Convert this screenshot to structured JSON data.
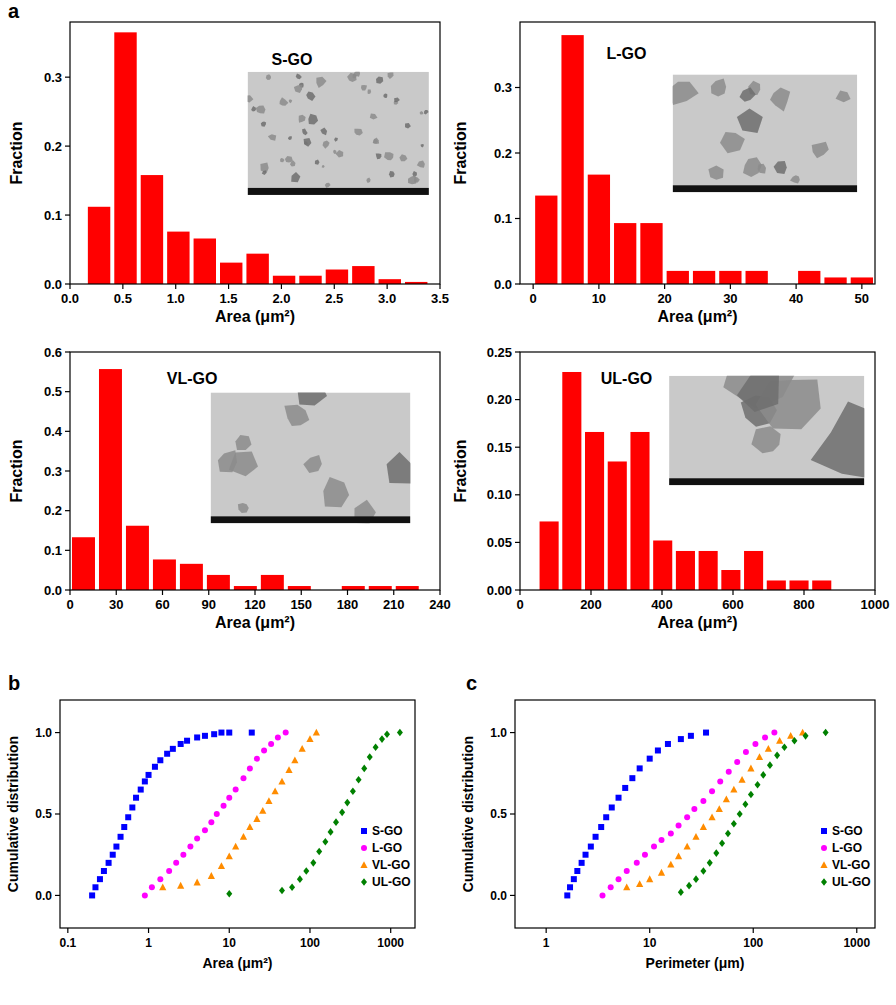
{
  "panel_labels": [
    "a",
    "b",
    "c"
  ],
  "chart_data": [
    {
      "type": "histogram",
      "title": "S-GO",
      "xlabel": "Area (μm²)",
      "ylabel": "Fraction",
      "color": "#ff0000",
      "bins": [
        0.15,
        0.4,
        0.65,
        0.9,
        1.15,
        1.4,
        1.65,
        1.9,
        2.15,
        2.4,
        2.65,
        2.9,
        3.15,
        3.4
      ],
      "values": [
        0.112,
        0.365,
        0.158,
        0.076,
        0.066,
        0.031,
        0.044,
        0.012,
        0.012,
        0.021,
        0.026,
        0.007,
        0.003
      ],
      "xlim": [
        0,
        3.5
      ],
      "ylim": [
        0,
        0.38
      ],
      "xticks": [
        {
          "value": 0,
          "label": "0.0"
        },
        0.5,
        {
          "value": 1,
          "label": "1.0"
        },
        1.5,
        {
          "value": 2,
          "label": "2.0"
        },
        2.5,
        {
          "value": 3,
          "label": "3.0"
        },
        3.5
      ],
      "yticks": [
        {
          "value": 0,
          "label": "0.0"
        },
        0.1,
        0.2,
        0.3
      ]
    },
    {
      "type": "histogram",
      "title": "L-GO",
      "xlabel": "Area (μm²)",
      "ylabel": "Fraction",
      "color": "#ff0000",
      "bins": [
        0,
        4,
        8,
        12,
        16,
        20,
        24,
        28,
        32,
        36,
        40,
        44,
        48,
        52
      ],
      "values": [
        0.135,
        0.38,
        0.167,
        0.093,
        0.093,
        0.02,
        0.02,
        0.02,
        0.02,
        0,
        0.02,
        0.01,
        0.01
      ],
      "xlim": [
        -2,
        52
      ],
      "ylim": [
        0,
        0.4
      ],
      "xticks": [
        0,
        10,
        20,
        30,
        40,
        50
      ],
      "yticks": [
        {
          "value": 0,
          "label": "0.0"
        },
        0.1,
        0.2,
        0.3
      ]
    },
    {
      "type": "histogram",
      "title": "VL-GO",
      "xlabel": "Area (μm²)",
      "ylabel": "Fraction",
      "color": "#ff0000",
      "bins": [
        0,
        17.5,
        35,
        52.5,
        70,
        87.5,
        105,
        122.5,
        140,
        157.5,
        175,
        192.5,
        210,
        227.5
      ],
      "values": [
        0.133,
        0.557,
        0.162,
        0.077,
        0.066,
        0.038,
        0.01,
        0.038,
        0.01,
        0,
        0.01,
        0.01,
        0.01
      ],
      "xlim": [
        0,
        240
      ],
      "ylim": [
        0,
        0.6
      ],
      "xticks": [
        0,
        30,
        60,
        90,
        120,
        150,
        180,
        210,
        240
      ],
      "yticks": [
        {
          "value": 0,
          "label": "0.0"
        },
        0.1,
        0.2,
        0.3,
        0.4,
        0.5,
        0.6
      ]
    },
    {
      "type": "histogram",
      "title": "UL-GO",
      "xlabel": "Area (μm²)",
      "ylabel": "Fraction",
      "color": "#ff0000",
      "bins": [
        50,
        114,
        178,
        242,
        306,
        370,
        434,
        498,
        562,
        626,
        690,
        754,
        818,
        882
      ],
      "values": [
        0.072,
        0.229,
        0.166,
        0.135,
        0.166,
        0.052,
        0.041,
        0.041,
        0.021,
        0.041,
        0.01,
        0.01,
        0.01
      ],
      "xlim": [
        0,
        1000
      ],
      "ylim": [
        0,
        0.25
      ],
      "xticks": [
        0,
        200,
        400,
        600,
        800,
        1000
      ],
      "yticks": [
        {
          "value": 0,
          "label": "0.00"
        },
        0.05,
        {
          "value": 0.1,
          "label": "0.10"
        },
        0.15,
        {
          "value": 0.2,
          "label": "0.20"
        },
        0.25
      ]
    },
    {
      "type": "scatter",
      "xlabel": "Area (μm²)",
      "ylabel": "Cumulative distribution",
      "log": "x",
      "legend": "lower right",
      "xlim": [
        0.08,
        2000
      ],
      "ylim": [
        -0.2,
        1.2
      ],
      "xticks": [
        0.1,
        1,
        10,
        100,
        1000
      ],
      "yticks": [
        {
          "value": 0,
          "label": "0.0"
        },
        0.5,
        {
          "value": 1,
          "label": "1.0"
        }
      ],
      "series": [
        {
          "name": "S-GO",
          "color": "#0000ff",
          "marker": "square",
          "x": [
            0.2,
            0.22,
            0.25,
            0.28,
            0.32,
            0.36,
            0.4,
            0.45,
            0.5,
            0.56,
            0.63,
            0.7,
            0.8,
            0.9,
            1.0,
            1.2,
            1.4,
            1.7,
            2.0,
            2.5,
            3.0,
            4.0,
            5.0,
            6.5,
            8,
            10,
            19
          ],
          "values": [
            0,
            0.05,
            0.1,
            0.15,
            0.2,
            0.25,
            0.3,
            0.36,
            0.42,
            0.48,
            0.54,
            0.6,
            0.65,
            0.7,
            0.74,
            0.79,
            0.83,
            0.87,
            0.9,
            0.93,
            0.95,
            0.97,
            0.98,
            0.99,
            1.0,
            1.0,
            1.0
          ]
        },
        {
          "name": "L-GO",
          "color": "#ff00ff",
          "marker": "circle",
          "x": [
            0.9,
            1.1,
            1.4,
            1.8,
            2.2,
            2.7,
            3.3,
            4,
            5,
            6,
            7,
            8.5,
            10,
            12,
            15,
            18,
            22,
            27,
            33,
            40,
            50
          ],
          "values": [
            0,
            0.05,
            0.1,
            0.15,
            0.2,
            0.25,
            0.3,
            0.35,
            0.4,
            0.45,
            0.5,
            0.55,
            0.6,
            0.65,
            0.72,
            0.78,
            0.84,
            0.89,
            0.93,
            0.97,
            1.0
          ]
        },
        {
          "name": "VL-GO",
          "color": "#ff8c00",
          "marker": "triangle",
          "x": [
            1.5,
            2.5,
            4,
            6,
            8,
            10,
            12,
            15,
            18,
            22,
            26,
            31,
            37,
            45,
            55,
            65,
            80,
            100,
            120
          ],
          "values": [
            0.05,
            0.06,
            0.08,
            0.12,
            0.18,
            0.24,
            0.3,
            0.36,
            0.42,
            0.47,
            0.52,
            0.58,
            0.64,
            0.7,
            0.77,
            0.83,
            0.9,
            0.96,
            1.0
          ]
        },
        {
          "name": "UL-GO",
          "color": "#008000",
          "marker": "diamond",
          "x": [
            10,
            45,
            60,
            75,
            90,
            110,
            130,
            155,
            180,
            210,
            250,
            290,
            340,
            400,
            470,
            550,
            650,
            780,
            900,
            1300
          ],
          "values": [
            0.01,
            0.03,
            0.05,
            0.1,
            0.15,
            0.2,
            0.27,
            0.33,
            0.39,
            0.45,
            0.51,
            0.57,
            0.64,
            0.71,
            0.78,
            0.85,
            0.91,
            0.96,
            0.99,
            1.0
          ]
        }
      ]
    },
    {
      "type": "scatter",
      "xlabel": "Perimeter (μm)",
      "ylabel": "Cumulative distribution",
      "log": "x",
      "legend": "lower right",
      "xlim": [
        0.5,
        1500
      ],
      "ylim": [
        -0.2,
        1.2
      ],
      "xticks": [
        1,
        10,
        100,
        1000
      ],
      "yticks": [
        {
          "value": 0,
          "label": "0.0"
        },
        0.5,
        {
          "value": 1,
          "label": "1.0"
        }
      ],
      "series": [
        {
          "name": "S-GO",
          "color": "#0000ff",
          "marker": "square",
          "x": [
            1.6,
            1.7,
            1.85,
            2,
            2.2,
            2.4,
            2.7,
            3,
            3.4,
            3.8,
            4.3,
            5,
            5.8,
            6.8,
            8,
            10,
            12,
            15,
            20,
            25,
            35
          ],
          "values": [
            0,
            0.05,
            0.1,
            0.15,
            0.2,
            0.25,
            0.3,
            0.36,
            0.42,
            0.48,
            0.54,
            0.6,
            0.66,
            0.72,
            0.78,
            0.84,
            0.89,
            0.93,
            0.96,
            0.98,
            1.0
          ]
        },
        {
          "name": "L-GO",
          "color": "#ff00ff",
          "marker": "circle",
          "x": [
            3.5,
            4.2,
            5,
            6,
            7.5,
            9,
            11,
            13,
            16,
            19,
            23,
            27,
            33,
            40,
            48,
            58,
            70,
            85,
            105,
            130,
            160
          ],
          "values": [
            0,
            0.05,
            0.1,
            0.15,
            0.2,
            0.25,
            0.3,
            0.34,
            0.38,
            0.43,
            0.48,
            0.53,
            0.58,
            0.64,
            0.7,
            0.76,
            0.82,
            0.88,
            0.93,
            0.97,
            1.0
          ]
        },
        {
          "name": "VL-GO",
          "color": "#ff8c00",
          "marker": "triangle",
          "x": [
            6,
            8,
            10,
            13,
            16,
            19,
            23,
            28,
            33,
            40,
            47,
            55,
            65,
            78,
            95,
            115,
            140,
            180,
            230,
            300
          ],
          "values": [
            0.05,
            0.07,
            0.1,
            0.14,
            0.19,
            0.24,
            0.3,
            0.36,
            0.42,
            0.48,
            0.53,
            0.59,
            0.65,
            0.71,
            0.78,
            0.85,
            0.9,
            0.95,
            0.98,
            1.0
          ]
        },
        {
          "name": "UL-GO",
          "color": "#008000",
          "marker": "diamond",
          "x": [
            20,
            24,
            28,
            33,
            38,
            44,
            50,
            57,
            65,
            74,
            84,
            95,
            110,
            125,
            145,
            170,
            200,
            250,
            320,
            500
          ],
          "values": [
            0.02,
            0.06,
            0.1,
            0.15,
            0.2,
            0.26,
            0.32,
            0.38,
            0.44,
            0.5,
            0.56,
            0.62,
            0.68,
            0.74,
            0.8,
            0.86,
            0.91,
            0.95,
            0.98,
            1.0
          ]
        }
      ]
    }
  ]
}
